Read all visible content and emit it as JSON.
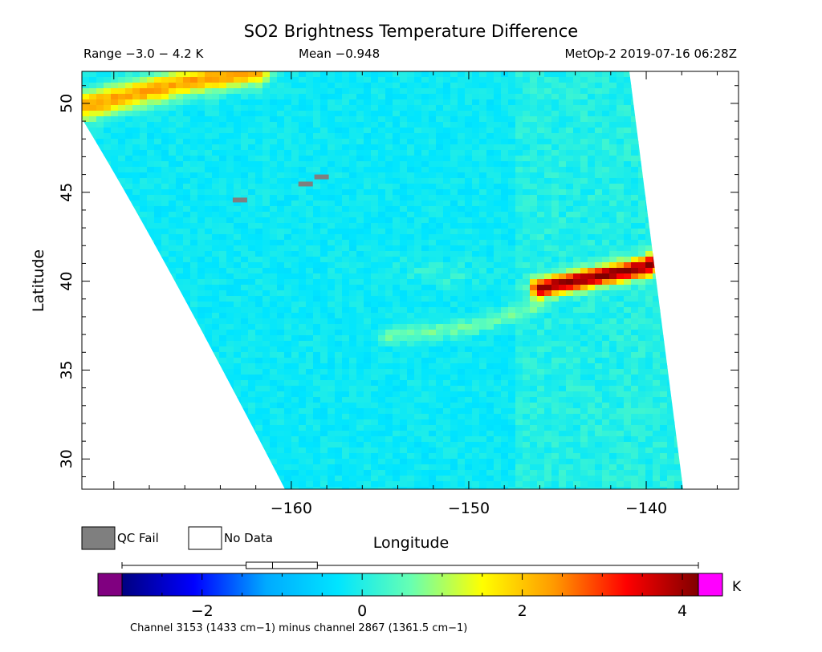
{
  "chart_data": {
    "type": "heatmap",
    "title": "SO2 Brightness Temperature Difference",
    "subtitle_range": "Range −3.0 − 4.2 K",
    "subtitle_mean": "Mean −0.948",
    "subtitle_source": "MetOp-2 2019-07-16 06:28Z",
    "xlabel": "Longitude",
    "ylabel": "Latitude",
    "xlim": [
      -171.8,
      -134.8
    ],
    "ylim": [
      28.3,
      51.8
    ],
    "xticks": [
      -160,
      -150,
      -140
    ],
    "xtick_labels": [
      "−160",
      "−150",
      "−140"
    ],
    "yticks": [
      30,
      35,
      40,
      45,
      50
    ],
    "ytick_labels": [
      "30",
      "35",
      "40",
      "45",
      "50"
    ],
    "legend": [
      {
        "label": "QC Fail",
        "color": "#7f7f7f"
      },
      {
        "label": "No Data",
        "color": "#ffffff"
      }
    ],
    "colorbar": {
      "min": -3.0,
      "max": 4.2,
      "unit": "K",
      "ticks": [
        -2,
        0,
        2,
        4
      ],
      "tick_labels": [
        "−2",
        "0",
        "2",
        "4"
      ],
      "under_color": "#800080",
      "over_color": "#ff00ff",
      "colors": [
        "#000080",
        "#0000ff",
        "#00aaff",
        "#00e5ff",
        "#66ffb3",
        "#ffff00",
        "#ff9900",
        "#ff0000",
        "#800000"
      ],
      "boxplot": {
        "whisker_low": -3.0,
        "q1": -1.45,
        "median": -1.12,
        "q3": -0.56,
        "whisker_high": 4.2
      }
    },
    "caption": "Channel 3153 (1433 cm−1) minus channel 2867 (1361.5 cm−1)",
    "features": [
      {
        "name": "high-btd-band",
        "points": [
          [
            -146.0,
            39.6
          ],
          [
            -143.0,
            40.2
          ],
          [
            -140.0,
            40.8
          ],
          [
            -137.5,
            42.2
          ]
        ],
        "peak_value": 4.2
      },
      {
        "name": "secondary-band",
        "points": [
          [
            -154.5,
            36.9
          ],
          [
            -150.0,
            37.4
          ],
          [
            -146.0,
            38.6
          ]
        ],
        "peak_value": 1.0
      },
      {
        "name": "north-west-band",
        "points": [
          [
            -171.8,
            49.8
          ],
          [
            -166.0,
            51.2
          ],
          [
            -162.0,
            51.8
          ]
        ],
        "peak_value": 2.5
      },
      {
        "name": "light-cloud-region",
        "center": [
          -151.5,
          40.5
        ],
        "value": 0.0
      }
    ]
  }
}
